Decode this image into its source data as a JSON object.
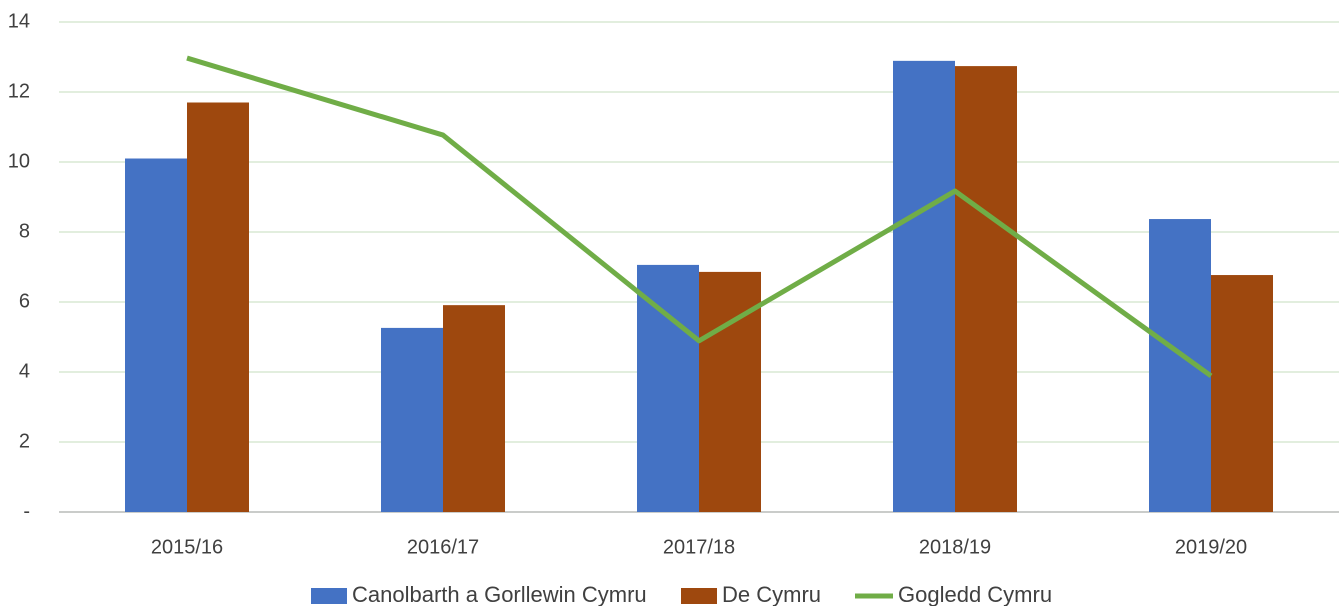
{
  "chart_data": {
    "type": "bar_line",
    "categories": [
      "2015/16",
      "2016/17",
      "2017/18",
      "2018/19",
      "2019/20"
    ],
    "series": [
      {
        "name": "Canolbarth a Gorllewin Cymru",
        "color": "#4472c4",
        "kind": "bar",
        "values": [
          10.1,
          5.26,
          7.06,
          12.89,
          8.37
        ]
      },
      {
        "name": "De Cymru",
        "color": "#9e480e",
        "kind": "bar",
        "values": [
          11.7,
          5.91,
          6.86,
          12.74,
          6.77
        ]
      },
      {
        "name": "Gogledd Cymru",
        "color": "#70ad47",
        "kind": "line",
        "values": [
          12.97,
          10.77,
          4.89,
          9.17,
          3.89
        ]
      }
    ],
    "ylim": [
      0,
      14
    ],
    "yticks": [
      {
        "value": 0,
        "label": "-"
      },
      2,
      4,
      6,
      8,
      10,
      12,
      14
    ],
    "grid": true,
    "legend": "bottom"
  }
}
